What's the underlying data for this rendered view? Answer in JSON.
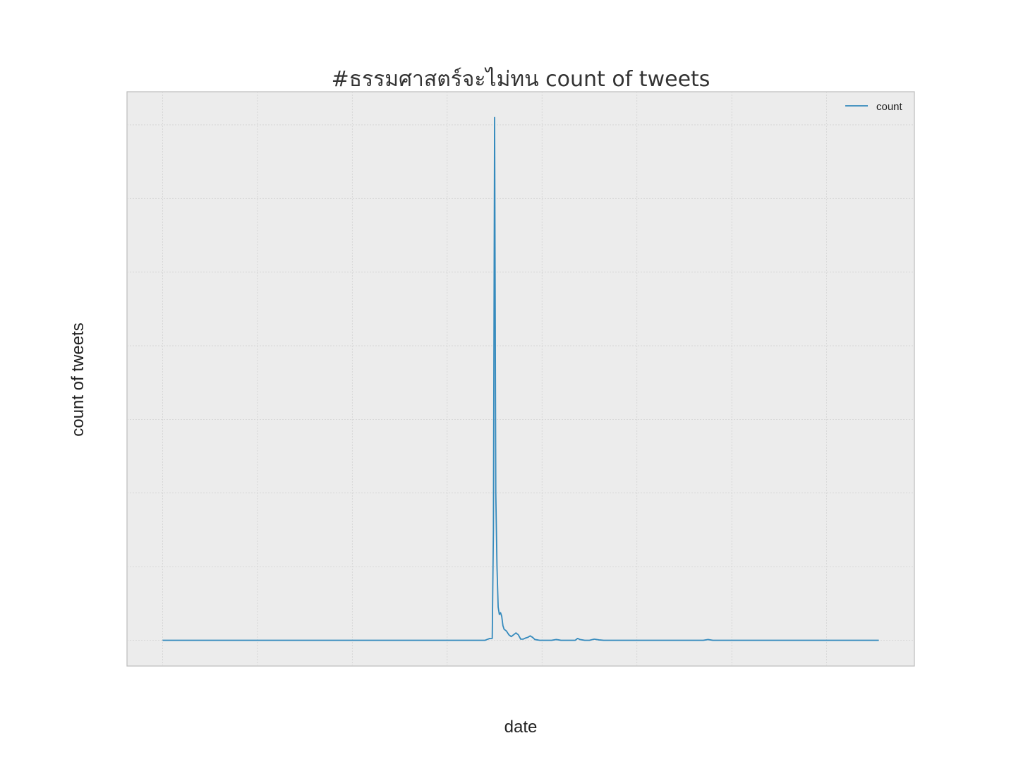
{
  "chart_data": {
    "type": "line",
    "title": "#ธรรมศาสตร์จะไม่ทน count of tweets",
    "xlabel": "date",
    "ylabel": "count of tweets",
    "x_tick_labels_visible": false,
    "y_tick_labels_visible": false,
    "grid": true,
    "legend": {
      "position": "top-right"
    },
    "xlim": [
      -15,
      317
    ],
    "ylim": [
      -7,
      149
    ],
    "x": [
      0,
      40,
      80,
      110,
      120,
      122,
      124,
      126,
      128,
      130,
      132,
      134,
      136,
      138,
      139,
      139.5,
      140,
      140.5,
      141,
      141.5,
      142,
      142.5,
      143,
      143.5,
      144,
      145,
      146,
      147,
      148,
      149,
      150,
      151,
      152,
      153,
      154,
      155,
      156,
      157,
      158,
      159,
      160,
      162,
      164,
      166,
      167,
      168,
      170,
      172,
      173,
      174,
      175,
      176,
      178,
      180,
      182,
      184,
      186,
      188,
      190,
      192,
      194,
      196,
      198,
      200,
      205,
      210,
      220,
      228,
      230,
      232,
      240,
      260,
      280,
      302
    ],
    "series": [
      {
        "name": "count",
        "color": "#348abd",
        "values": [
          0,
          0,
          0,
          0,
          0,
          0,
          0,
          0,
          0,
          0,
          0,
          0,
          0,
          0.5,
          0.5,
          30,
          142,
          40,
          20,
          9,
          7,
          7.5,
          6.5,
          4,
          3,
          2.5,
          1.5,
          1,
          1.5,
          2,
          1.5,
          0.3,
          0.3,
          0.6,
          0.8,
          1.2,
          0.8,
          0.2,
          0.1,
          0,
          0,
          0,
          0,
          0.2,
          0.1,
          0,
          0,
          0,
          0,
          0,
          0.5,
          0.2,
          0,
          0,
          0.3,
          0.1,
          0,
          0,
          0,
          0,
          0,
          0,
          0,
          0,
          0,
          0,
          0,
          0,
          0.2,
          0,
          0,
          0,
          0,
          0
        ]
      }
    ]
  }
}
